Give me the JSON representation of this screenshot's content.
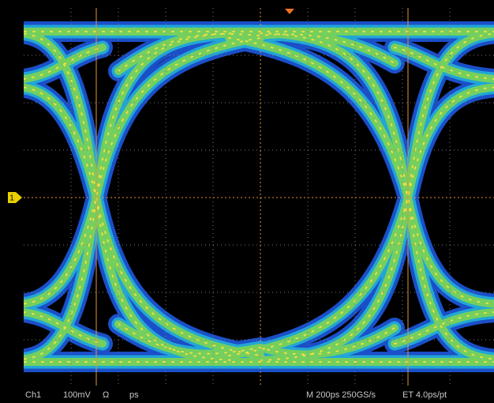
{
  "channel_marker": "1",
  "status_bar": {
    "channel": "Ch1",
    "scale": "100mV",
    "coupling": "Ω",
    "deskew": "ps",
    "timebase": "M 200ps 250GS/s",
    "sampling": "ET 4.0ps/pt"
  }
}
